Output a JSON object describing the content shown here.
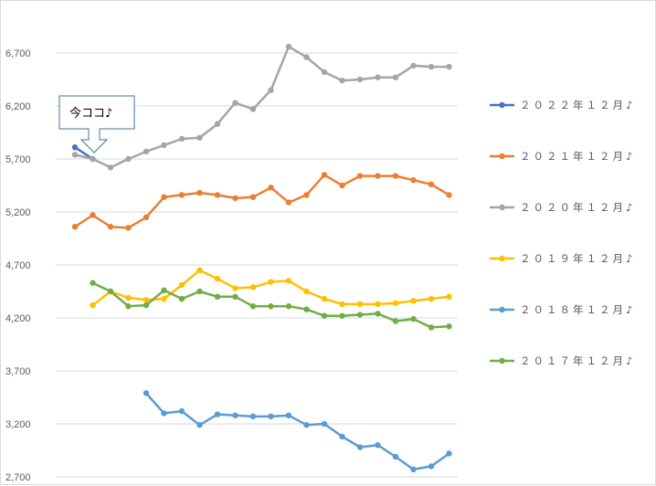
{
  "chart_data": {
    "type": "line",
    "y_ticks": [
      2700,
      3200,
      3700,
      4200,
      4700,
      5200,
      5700,
      6200,
      6700
    ],
    "y_tick_labels": [
      "2,700",
      "3,200",
      "3,700",
      "4,200",
      "4,700",
      "5,200",
      "5,700",
      "6,200",
      "6,700"
    ],
    "ylim": [
      2700,
      6950
    ],
    "n_points": 22,
    "grid": "horizontal",
    "legend_position": "right",
    "series": [
      {
        "name": "２０２２年１２月♪",
        "color": "#4472c4",
        "values": [
          5810,
          5700,
          null,
          null,
          null,
          null,
          null,
          null,
          null,
          null,
          null,
          null,
          null,
          null,
          null,
          null,
          null,
          null,
          null,
          null,
          null,
          null
        ]
      },
      {
        "name": "２０２１年１２月♪",
        "color": "#ed7d31",
        "values": [
          5060,
          5170,
          5060,
          5050,
          5150,
          5340,
          5360,
          5380,
          5360,
          5330,
          5340,
          5430,
          5290,
          5360,
          5550,
          5450,
          5540,
          5540,
          5540,
          5500,
          5460,
          5360
        ]
      },
      {
        "name": "２０２０年１２月♪",
        "color": "#a5a5a5",
        "values": [
          5740,
          5700,
          5620,
          5700,
          5770,
          5830,
          5890,
          5900,
          6030,
          6230,
          6170,
          6350,
          6760,
          6660,
          6520,
          6440,
          6450,
          6470,
          6470,
          6580,
          6570,
          6570
        ]
      },
      {
        "name": "２０１９年１２月♪",
        "color": "#ffc000",
        "values": [
          null,
          4320,
          4450,
          4390,
          4370,
          4380,
          4510,
          4650,
          4570,
          4480,
          4490,
          4540,
          4550,
          4450,
          4380,
          4330,
          4330,
          4330,
          4340,
          4360,
          4380,
          4400
        ]
      },
      {
        "name": "２０１８年１２月♪",
        "color": "#5b9bd5",
        "values": [
          null,
          null,
          null,
          null,
          3490,
          3300,
          3320,
          3190,
          3290,
          3280,
          3270,
          3270,
          3280,
          3190,
          3200,
          3080,
          2980,
          3000,
          2890,
          2770,
          2800,
          2920
        ]
      },
      {
        "name": "２０１７年１２月♪",
        "color": "#70ad47",
        "values": [
          null,
          4530,
          4450,
          4310,
          4320,
          4460,
          4380,
          4450,
          4400,
          4400,
          4310,
          4310,
          4310,
          4280,
          4220,
          4220,
          4230,
          4240,
          4170,
          4190,
          4110,
          4120
        ]
      }
    ]
  },
  "callout": {
    "text": "今ココ♪"
  }
}
